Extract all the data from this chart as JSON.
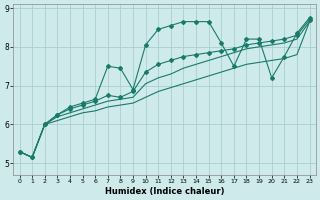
{
  "xlabel": "Humidex (Indice chaleur)",
  "background_color": "#ceeaea",
  "grid_color": "#aacece",
  "line_color": "#1a7a6a",
  "xlim": [
    -0.5,
    23.5
  ],
  "ylim": [
    4.7,
    9.1
  ],
  "yticks": [
    5,
    6,
    7,
    8,
    9
  ],
  "xticks": [
    0,
    1,
    2,
    3,
    4,
    5,
    6,
    7,
    8,
    9,
    10,
    11,
    12,
    13,
    14,
    15,
    16,
    17,
    18,
    19,
    20,
    21,
    22,
    23
  ],
  "series": {
    "jagged1": [
      5.3,
      5.15,
      6.0,
      6.25,
      6.45,
      6.55,
      6.65,
      7.5,
      7.45,
      6.9,
      8.05,
      8.45,
      8.55,
      8.65,
      8.65,
      8.65,
      8.1,
      7.5,
      8.2,
      8.2,
      7.2,
      7.75,
      8.35,
      8.75
    ],
    "jagged2": [
      5.3,
      5.15,
      6.0,
      6.25,
      6.4,
      6.5,
      6.6,
      6.75,
      6.7,
      6.85,
      7.35,
      7.55,
      7.65,
      7.75,
      7.8,
      7.85,
      7.9,
      7.95,
      8.05,
      8.1,
      8.15,
      8.2,
      8.3,
      8.7
    ],
    "trend_high": [
      5.3,
      5.15,
      6.0,
      6.2,
      6.3,
      6.4,
      6.5,
      6.6,
      6.65,
      6.7,
      7.05,
      7.2,
      7.3,
      7.45,
      7.55,
      7.65,
      7.75,
      7.85,
      7.95,
      8.0,
      8.05,
      8.1,
      8.2,
      8.65
    ],
    "trend_low": [
      5.3,
      5.15,
      6.0,
      6.1,
      6.2,
      6.3,
      6.35,
      6.45,
      6.5,
      6.55,
      6.7,
      6.85,
      6.95,
      7.05,
      7.15,
      7.25,
      7.35,
      7.45,
      7.55,
      7.6,
      7.65,
      7.7,
      7.8,
      8.65
    ]
  }
}
